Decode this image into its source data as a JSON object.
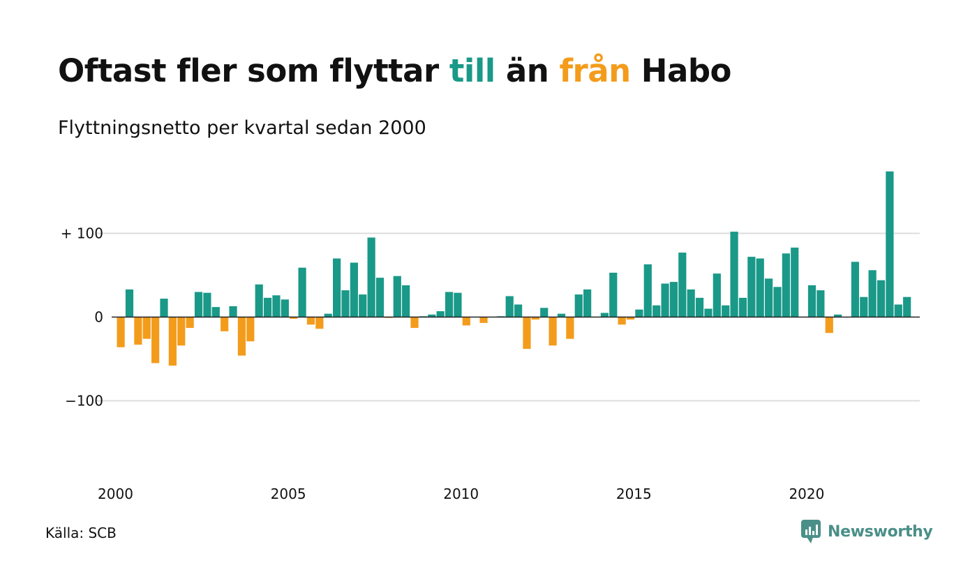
{
  "header": {
    "title_part1": "Oftast fler som flyttar ",
    "title_to": "till",
    "title_part2": " än ",
    "title_from": "från",
    "title_part3": " Habo",
    "subtitle": "Flyttningsnetto per kvartal sedan 2000"
  },
  "footer": {
    "source": "Källa: SCB",
    "brand": "Newsworthy"
  },
  "colors": {
    "positive": "#1a9988",
    "negative": "#f39c1c",
    "grid": "#dddddd",
    "brand": "#4a8f88"
  },
  "chart_data": {
    "type": "bar",
    "x_start": "2000 Q1",
    "x_ticks": [
      "2000",
      "2005",
      "2010",
      "2015",
      "2020"
    ],
    "y_ticks": [
      {
        "value": 100,
        "label": "+ 100"
      },
      {
        "value": 0,
        "label": "0"
      },
      {
        "value": -100,
        "label": "−100"
      }
    ],
    "ylim": [
      -190,
      175
    ],
    "values": [
      -36,
      33,
      -33,
      -26,
      -55,
      22,
      -58,
      -34,
      -13,
      30,
      29,
      12,
      -17,
      13,
      -46,
      -29,
      39,
      23,
      26,
      21,
      -2,
      59,
      -9,
      -14,
      4,
      70,
      32,
      65,
      27,
      95,
      47,
      -1,
      49,
      38,
      -13,
      1,
      3,
      7,
      30,
      29,
      -10,
      0,
      -7,
      0,
      1,
      25,
      15,
      -38,
      -3,
      11,
      -34,
      4,
      -26,
      27,
      33,
      0,
      5,
      53,
      -9,
      -3,
      9,
      63,
      14,
      40,
      42,
      77,
      33,
      23,
      10,
      52,
      14,
      102,
      23,
      72,
      70,
      46,
      36,
      76,
      83,
      0,
      38,
      32,
      -19,
      3,
      0,
      66,
      24,
      56,
      44,
      174,
      15,
      24
    ]
  }
}
